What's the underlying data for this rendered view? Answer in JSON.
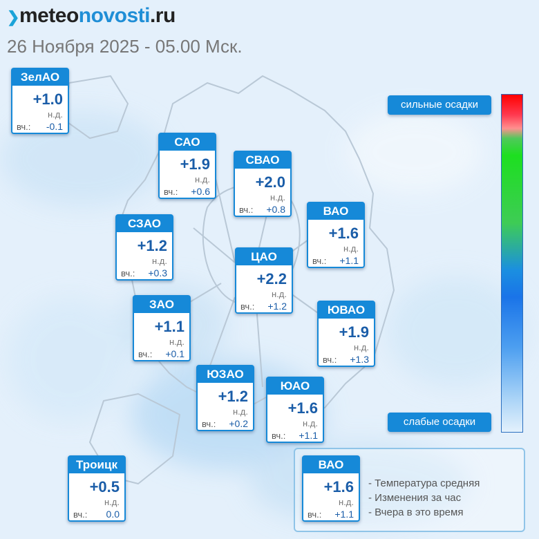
{
  "brand": {
    "part1": "meteo",
    "part2": "novosti",
    "part3": ".ru"
  },
  "subtitle": "26 Ноября 2025 - 05.00 Мск.",
  "labels": {
    "nd": "н.д.",
    "yesterday": "вч.:"
  },
  "districts": [
    {
      "name": "ЗелАО",
      "temp": "+1.0",
      "yesterday": "-0.1"
    },
    {
      "name": "САО",
      "temp": "+1.9",
      "yesterday": "+0.6"
    },
    {
      "name": "СВАО",
      "temp": "+2.0",
      "yesterday": "+0.8"
    },
    {
      "name": "ВАО",
      "temp": "+1.6",
      "yesterday": "+1.1"
    },
    {
      "name": "СЗАО",
      "temp": "+1.2",
      "yesterday": "+0.3"
    },
    {
      "name": "ЦАО",
      "temp": "+2.2",
      "yesterday": "+1.2"
    },
    {
      "name": "ЗАО",
      "temp": "+1.1",
      "yesterday": "+0.1"
    },
    {
      "name": "ЮВАО",
      "temp": "+1.9",
      "yesterday": "+1.3"
    },
    {
      "name": "ЮЗАО",
      "temp": "+1.2",
      "yesterday": "+0.2"
    },
    {
      "name": "ЮАО",
      "temp": "+1.6",
      "yesterday": "+1.1"
    },
    {
      "name": "Троицк",
      "temp": "+0.5",
      "yesterday": "0.0"
    }
  ],
  "scale": {
    "top_label": "сильные осадки",
    "bottom_label": "слабые осадки"
  },
  "legend": {
    "sample": {
      "name": "ВАО",
      "temp": "+1.6",
      "yesterday": "+1.1"
    },
    "lines": [
      "- Температура средняя",
      "- Изменения за час",
      "- Вчера в это время"
    ]
  },
  "colors": {
    "accent": "#1689d8",
    "value": "#1a5da8",
    "background": "#eaf4fc"
  }
}
